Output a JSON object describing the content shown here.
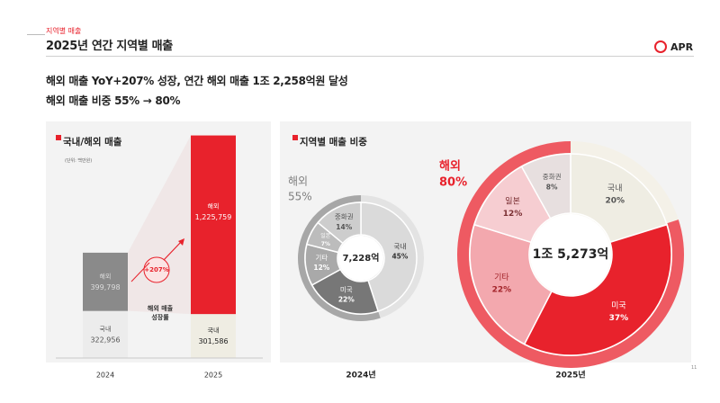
{
  "header": {
    "section_label": "지역별 매출",
    "title": "2025년 연간 지역별 매출",
    "logo_text": "APR"
  },
  "summary": {
    "line1": "해외 매출 YoY+207% 성장, 연간 해외 매출 1조 2,258억원 달성",
    "line2": "해외 매출 비중 55% → 80%"
  },
  "page_number": "11",
  "colors": {
    "brand_red": "#e8222c",
    "domestic_beige": "#efede3",
    "overseas_gray": "#8a8a8a"
  },
  "chart_data": [
    {
      "type": "bar",
      "title": "국내/해외 매출",
      "unit_note": "(단위: 백만원)",
      "categories": [
        "2024",
        "2025"
      ],
      "series": [
        {
          "name": "국내",
          "values": [
            322956,
            301586
          ],
          "labels": [
            "322,956",
            "301,586"
          ]
        },
        {
          "name": "해외",
          "values": [
            399798,
            1225759
          ],
          "labels": [
            "399,798",
            "1,225,759"
          ]
        }
      ],
      "annotation": {
        "value": "+207%",
        "label": "해외 매출 성장률"
      }
    },
    {
      "type": "pie",
      "title": "지역별 매출 비중",
      "year_label": "2024년",
      "center_label": "7,228억",
      "outer_ring": {
        "label": "해외",
        "value_label": "55%",
        "value": 55
      },
      "slices": [
        {
          "name": "국내",
          "value": 45,
          "label": "45%"
        },
        {
          "name": "미국",
          "value": 22,
          "label": "22%"
        },
        {
          "name": "기타",
          "value": 12,
          "label": "12%"
        },
        {
          "name": "일본",
          "value": 7,
          "label": "7%"
        },
        {
          "name": "중화권",
          "value": 14,
          "label": "14%"
        }
      ]
    },
    {
      "type": "pie",
      "year_label": "2025년",
      "center_label": "1조 5,273억",
      "outer_ring": {
        "label": "해외",
        "value_label": "80%",
        "value": 80
      },
      "slices": [
        {
          "name": "국내",
          "value": 20,
          "label": "20%"
        },
        {
          "name": "미국",
          "value": 37,
          "label": "37%"
        },
        {
          "name": "기타",
          "value": 22,
          "label": "22%"
        },
        {
          "name": "일본",
          "value": 12,
          "label": "12%"
        },
        {
          "name": "중화권",
          "value": 8,
          "label": "8%"
        }
      ]
    }
  ]
}
